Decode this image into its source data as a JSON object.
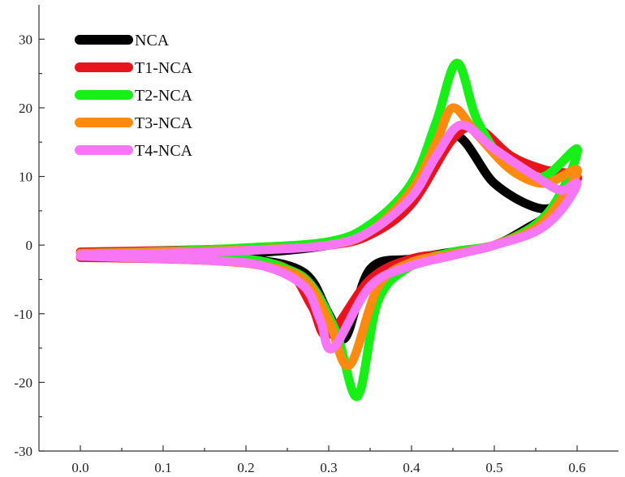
{
  "chart_data": {
    "type": "line",
    "title": "",
    "xlabel": "",
    "ylabel": "",
    "xlim": [
      -0.05,
      0.65
    ],
    "ylim": [
      -30,
      35
    ],
    "grid": false,
    "legend_position": "top-left",
    "x_ticks": [
      0.0,
      0.1,
      0.2,
      0.3,
      0.4,
      0.5,
      0.6
    ],
    "x_tick_labels": [
      "0.0",
      "0.1",
      "0.2",
      "0.3",
      "0.4",
      "0.5",
      "0.6"
    ],
    "y_ticks": [
      -30,
      -20,
      -10,
      0,
      10,
      20,
      30
    ],
    "y_tick_labels": [
      "-30",
      "-20",
      "-10",
      "0",
      "10",
      "20",
      "30"
    ],
    "series": [
      {
        "name": "NCA",
        "color": "#000000",
        "points": [
          [
            0.0,
            -1.5
          ],
          [
            0.1,
            -1.4
          ],
          [
            0.2,
            -1.2
          ],
          [
            0.3,
            0.0
          ],
          [
            0.35,
            2.0
          ],
          [
            0.4,
            7.0
          ],
          [
            0.45,
            16.0
          ],
          [
            0.5,
            9.0
          ],
          [
            0.55,
            5.5
          ],
          [
            0.58,
            6.0
          ],
          [
            0.6,
            9.0
          ],
          [
            0.58,
            5.5
          ],
          [
            0.54,
            2.5
          ],
          [
            0.5,
            0.0
          ],
          [
            0.45,
            -1.0
          ],
          [
            0.4,
            -2.0
          ],
          [
            0.35,
            -3.5
          ],
          [
            0.32,
            -13.5
          ],
          [
            0.3,
            -10.0
          ],
          [
            0.27,
            -4.0
          ],
          [
            0.2,
            -2.0
          ],
          [
            0.1,
            -1.7
          ],
          [
            0.0,
            -1.6
          ]
        ]
      },
      {
        "name": "T1-NCA",
        "color": "#e8141b",
        "points": [
          [
            0.0,
            -1.0
          ],
          [
            0.1,
            -0.8
          ],
          [
            0.2,
            -0.5
          ],
          [
            0.3,
            0.0
          ],
          [
            0.35,
            1.5
          ],
          [
            0.4,
            6.0
          ],
          [
            0.45,
            15.5
          ],
          [
            0.48,
            17.0
          ],
          [
            0.52,
            13.0
          ],
          [
            0.56,
            11.0
          ],
          [
            0.6,
            10.0
          ],
          [
            0.58,
            7.0
          ],
          [
            0.55,
            3.0
          ],
          [
            0.5,
            0.0
          ],
          [
            0.45,
            -1.2
          ],
          [
            0.4,
            -2.0
          ],
          [
            0.35,
            -5.0
          ],
          [
            0.3,
            -13.0
          ],
          [
            0.28,
            -9.0
          ],
          [
            0.25,
            -3.5
          ],
          [
            0.2,
            -2.5
          ],
          [
            0.1,
            -2.0
          ],
          [
            0.0,
            -1.8
          ]
        ]
      },
      {
        "name": "T2-NCA",
        "color": "#16f016",
        "points": [
          [
            0.0,
            -1.2
          ],
          [
            0.1,
            -0.9
          ],
          [
            0.2,
            -0.4
          ],
          [
            0.3,
            0.5
          ],
          [
            0.35,
            3.0
          ],
          [
            0.4,
            9.0
          ],
          [
            0.43,
            18.0
          ],
          [
            0.455,
            26.5
          ],
          [
            0.48,
            18.0
          ],
          [
            0.52,
            11.0
          ],
          [
            0.56,
            10.0
          ],
          [
            0.6,
            14.0
          ],
          [
            0.58,
            7.5
          ],
          [
            0.55,
            3.0
          ],
          [
            0.5,
            0.0
          ],
          [
            0.45,
            -1.0
          ],
          [
            0.4,
            -3.0
          ],
          [
            0.36,
            -8.0
          ],
          [
            0.335,
            -22.0
          ],
          [
            0.31,
            -13.0
          ],
          [
            0.28,
            -6.0
          ],
          [
            0.25,
            -3.5
          ],
          [
            0.2,
            -2.0
          ],
          [
            0.1,
            -1.5
          ],
          [
            0.0,
            -1.3
          ]
        ]
      },
      {
        "name": "T3-NCA",
        "color": "#ff8a10",
        "points": [
          [
            0.0,
            -1.2
          ],
          [
            0.1,
            -1.0
          ],
          [
            0.2,
            -0.7
          ],
          [
            0.3,
            0.0
          ],
          [
            0.35,
            2.0
          ],
          [
            0.4,
            8.0
          ],
          [
            0.43,
            15.0
          ],
          [
            0.45,
            20.0
          ],
          [
            0.48,
            16.0
          ],
          [
            0.52,
            11.0
          ],
          [
            0.56,
            9.0
          ],
          [
            0.6,
            11.0
          ],
          [
            0.58,
            6.5
          ],
          [
            0.55,
            2.5
          ],
          [
            0.5,
            0.0
          ],
          [
            0.45,
            -1.3
          ],
          [
            0.4,
            -2.5
          ],
          [
            0.36,
            -6.0
          ],
          [
            0.325,
            -17.5
          ],
          [
            0.3,
            -11.0
          ],
          [
            0.27,
            -5.0
          ],
          [
            0.22,
            -3.0
          ],
          [
            0.15,
            -2.2
          ],
          [
            0.05,
            -1.7
          ],
          [
            0.0,
            -1.5
          ]
        ]
      },
      {
        "name": "T4-NCA",
        "color": "#f676f4",
        "points": [
          [
            0.0,
            -1.4
          ],
          [
            0.1,
            -1.2
          ],
          [
            0.2,
            -0.8
          ],
          [
            0.3,
            0.0
          ],
          [
            0.35,
            2.0
          ],
          [
            0.4,
            7.0
          ],
          [
            0.43,
            13.0
          ],
          [
            0.46,
            17.5
          ],
          [
            0.5,
            14.0
          ],
          [
            0.55,
            10.0
          ],
          [
            0.58,
            8.0
          ],
          [
            0.6,
            9.0
          ],
          [
            0.58,
            5.0
          ],
          [
            0.55,
            2.0
          ],
          [
            0.5,
            0.0
          ],
          [
            0.45,
            -1.5
          ],
          [
            0.4,
            -3.0
          ],
          [
            0.35,
            -6.0
          ],
          [
            0.305,
            -15.0
          ],
          [
            0.29,
            -11.0
          ],
          [
            0.27,
            -6.0
          ],
          [
            0.22,
            -3.0
          ],
          [
            0.15,
            -2.2
          ],
          [
            0.05,
            -1.8
          ],
          [
            0.0,
            -1.6
          ]
        ]
      }
    ]
  }
}
